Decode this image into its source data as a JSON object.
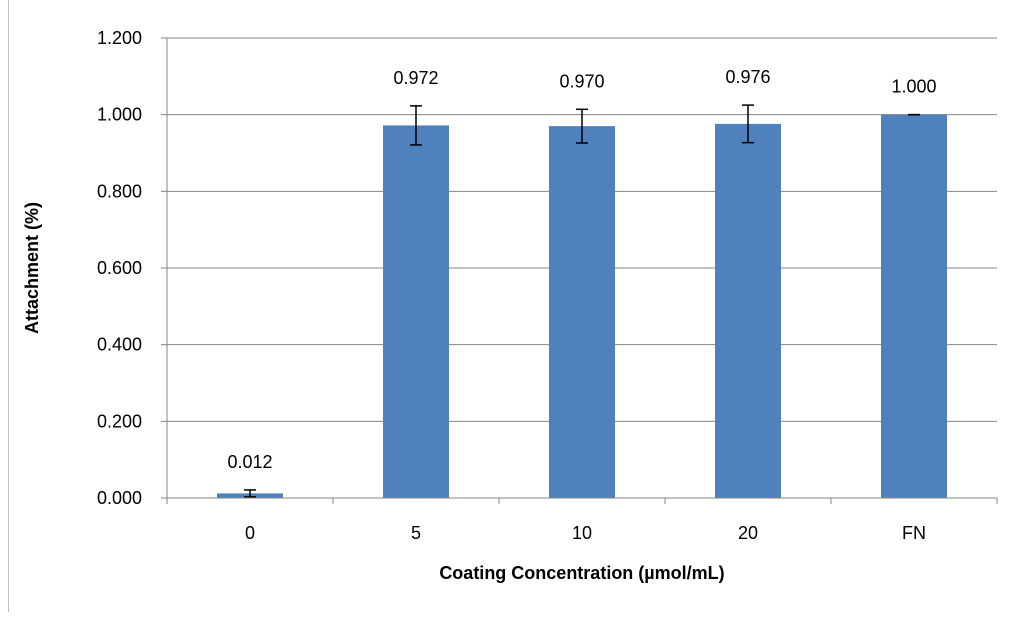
{
  "chart_data": {
    "type": "bar",
    "categories": [
      "0",
      "5",
      "10",
      "20",
      "FN"
    ],
    "values": [
      0.012,
      0.972,
      0.97,
      0.976,
      1.0
    ],
    "value_labels": [
      "0.012",
      "0.972",
      "0.970",
      "0.976",
      "1.000"
    ],
    "error": [
      0.009,
      0.051,
      0.044,
      0.049,
      0.0
    ],
    "xlabel": "Coating Concentration (µmol/mL)",
    "ylabel": "Attachment (%)",
    "ylim": [
      0,
      1.2
    ],
    "yticks": [
      "0.000",
      "0.200",
      "0.400",
      "0.600",
      "0.800",
      "1.000",
      "1.200"
    ],
    "grid": true,
    "legend": "none",
    "bar_color": "#4f81bd"
  }
}
